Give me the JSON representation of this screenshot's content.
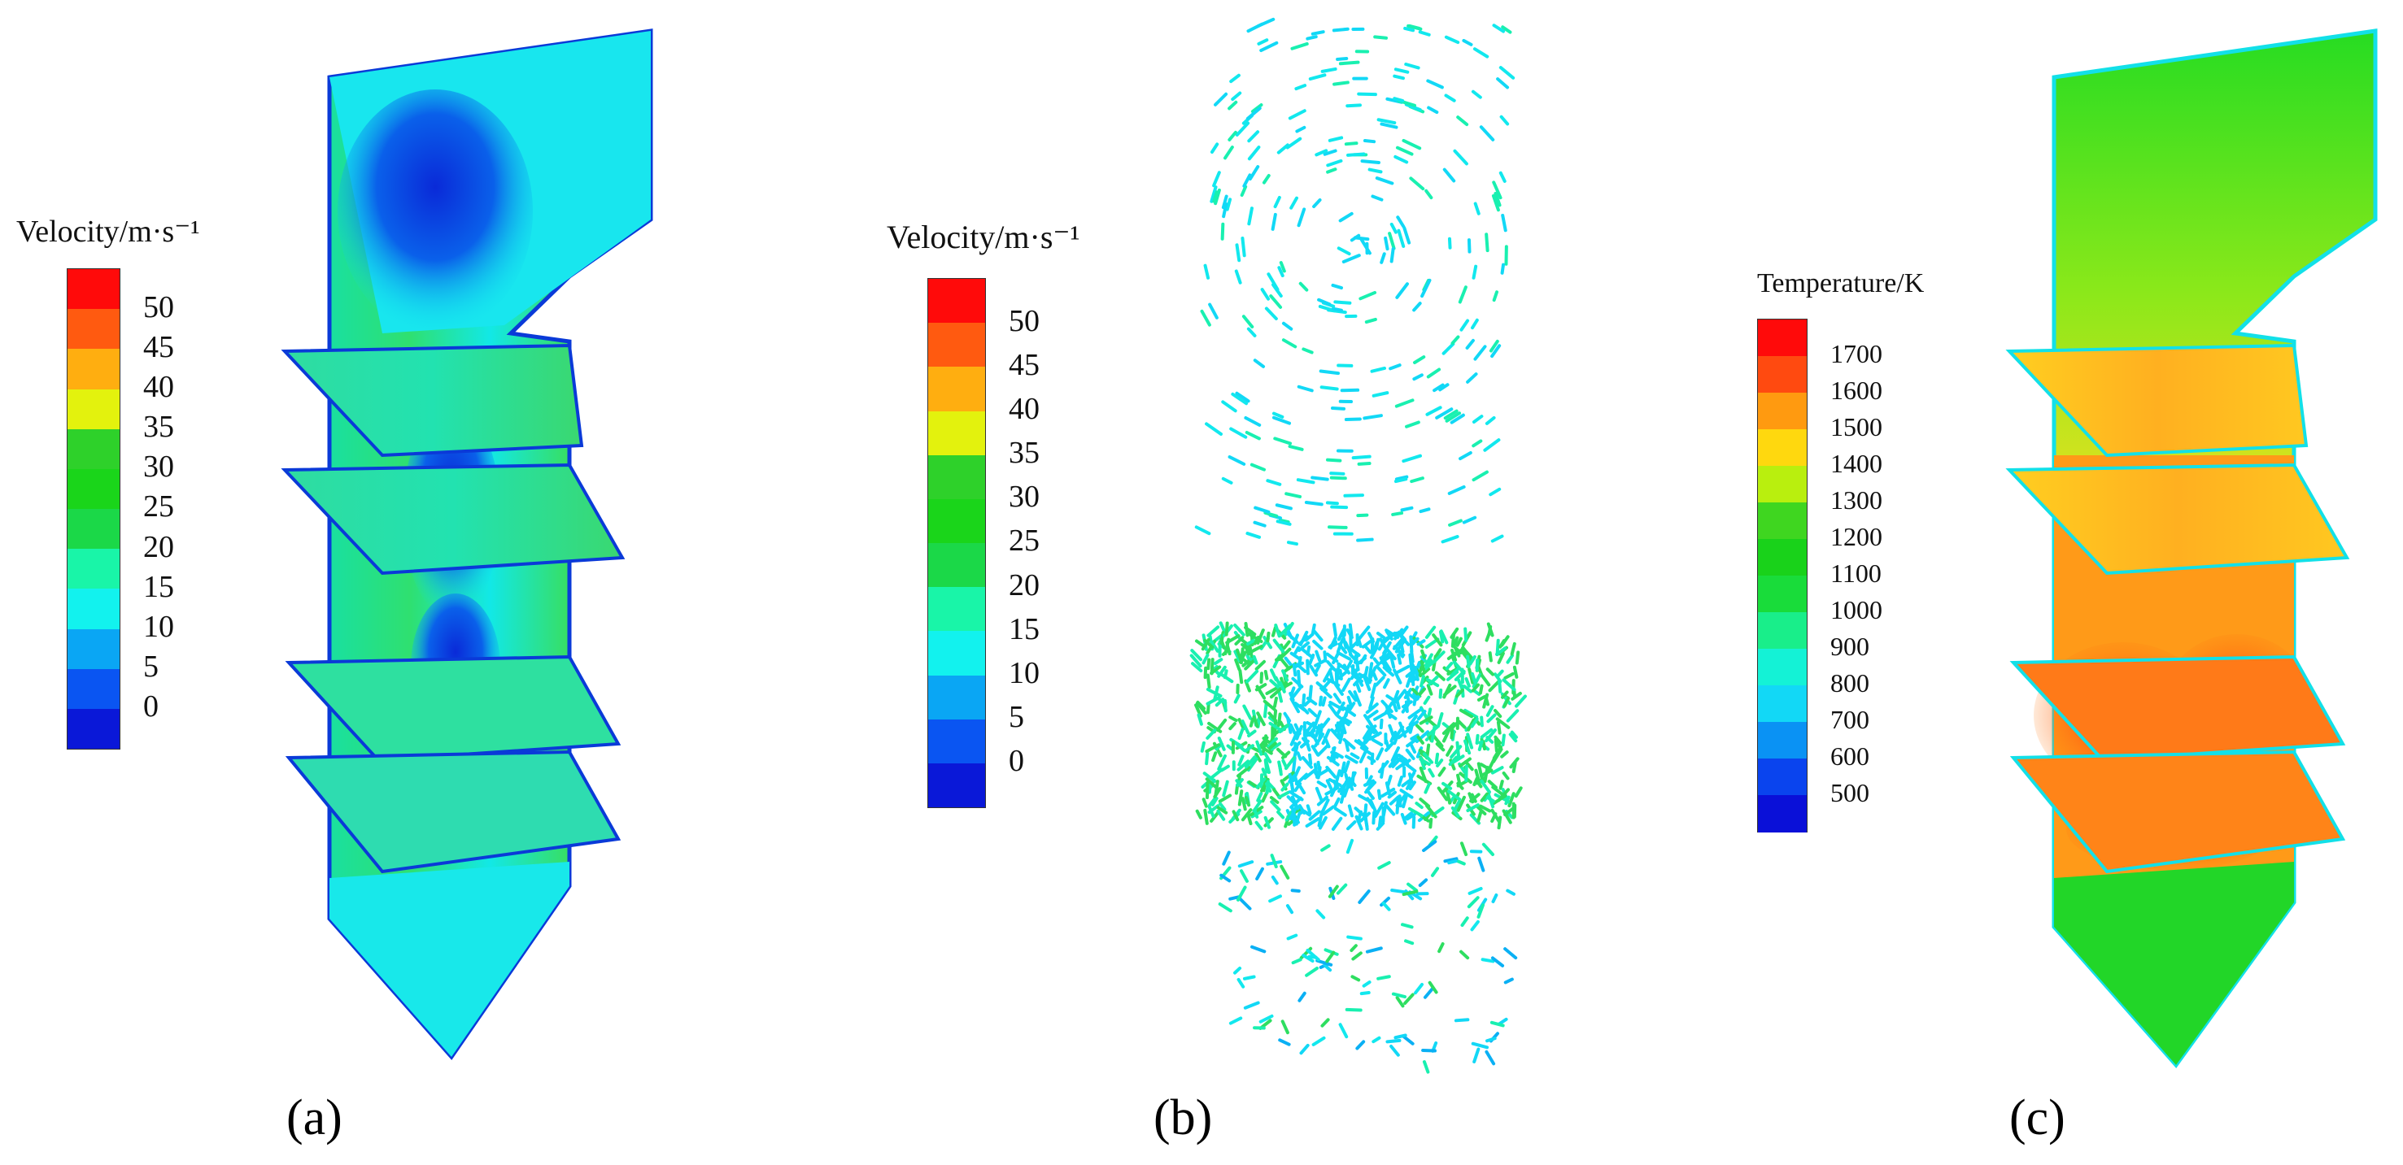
{
  "panels": [
    {
      "label": "(a)",
      "legend": {
        "title": "Velocity/m·s⁻¹",
        "ticks": [
          "50",
          "45",
          "40",
          "35",
          "30",
          "25",
          "20",
          "15",
          "10",
          "5",
          "0"
        ],
        "colors": [
          "#ff0a0a",
          "#ff5a10",
          "#ffae10",
          "#e3f20d",
          "#2ed12a",
          "#1ad51a",
          "#1bd848",
          "#19f5a8",
          "#12f2ee",
          "#0aa6f4",
          "#0a55f2",
          "#0a18d8"
        ]
      }
    },
    {
      "label": "(b)",
      "legend": {
        "title": "Velocity/m·s⁻¹",
        "ticks": [
          "50",
          "45",
          "40",
          "35",
          "30",
          "25",
          "20",
          "15",
          "10",
          "5",
          "0"
        ],
        "colors": [
          "#ff0a0a",
          "#ff5a10",
          "#ffae10",
          "#e3f20d",
          "#2ed12a",
          "#1ad51a",
          "#1bd848",
          "#19f5a8",
          "#12f2ee",
          "#0aa6f4",
          "#0a55f2",
          "#0a18d8"
        ]
      }
    },
    {
      "label": "(c)",
      "legend": {
        "title": "Temperature/K",
        "ticks": [
          "1700",
          "1600",
          "1500",
          "1400",
          "1300",
          "1200",
          "1100",
          "1000",
          "900",
          "800",
          "700",
          "600",
          "500"
        ],
        "colors": [
          "#ff0a0a",
          "#ff4a10",
          "#ff9a10",
          "#ffd80e",
          "#b9ef0e",
          "#3fd620",
          "#19d21a",
          "#19dc3a",
          "#19ee8a",
          "#14f2d6",
          "#12d8f6",
          "#0a92f4",
          "#0a44ee",
          "#0a10d8"
        ]
      }
    }
  ]
}
